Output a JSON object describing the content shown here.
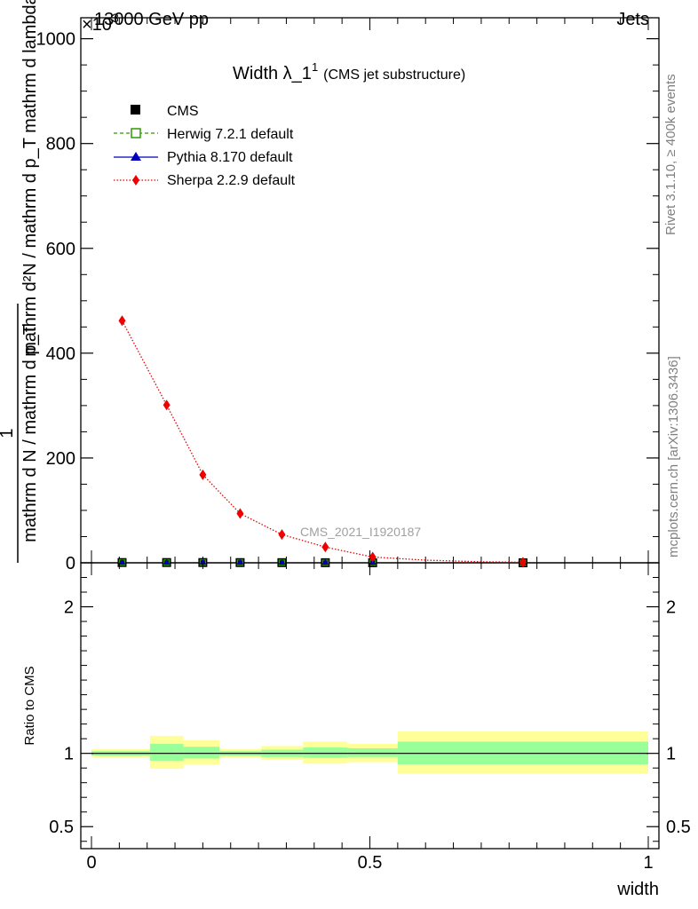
{
  "header": {
    "energy_label": "13000 GeV pp",
    "process_label": "Jets",
    "exponent_label": "×10",
    "exponent_sup": "3"
  },
  "side_labels": {
    "rivet": "Rivet 3.1.10, ≥ 400k events",
    "mcplots": "mcplots.cern.ch [arXiv:1306.3436]"
  },
  "chart_data": [
    {
      "type": "line",
      "title": "Width λ_1",
      "title_sup": "1",
      "title_suffix": "(CMS jet substructure)",
      "ylabel_numerator": "1",
      "ylabel_denominator": "mathrm d N / mathrm d p_T",
      "ylabel_main": "mathrm d²N / mathrm d p_T mathrm d lambda",
      "watermark": "CMS_2021_I1920187",
      "ylim": [
        0,
        1040
      ],
      "yticks": [
        0,
        200,
        400,
        600,
        800,
        1000
      ],
      "ytick_labels": [
        "0",
        "200",
        "400",
        "600",
        "800",
        "1000"
      ],
      "xlim": [
        0,
        1
      ],
      "legend_position": "top-left",
      "series": [
        {
          "name": "CMS",
          "color": "#000000",
          "marker": "square",
          "x": [
            0.055,
            0.135,
            0.2,
            0.267,
            0.342,
            0.42,
            0.505,
            0.775
          ],
          "values": [
            0.5,
            0.5,
            0.5,
            0.4,
            0.3,
            0.2,
            0.1,
            0.05
          ]
        },
        {
          "name": "Herwig 7.2.1 default",
          "color": "#339900",
          "marker": "open-square",
          "x": [
            0.055,
            0.135,
            0.2,
            0.267,
            0.342,
            0.42,
            0.505,
            0.775
          ],
          "values": [
            0.5,
            0.5,
            0.5,
            0.4,
            0.3,
            0.2,
            0.1,
            0.05
          ]
        },
        {
          "name": "Pythia 8.170 default",
          "color": "#0000bb",
          "marker": "triangle",
          "x": [
            0.055,
            0.135,
            0.2,
            0.267,
            0.342,
            0.42,
            0.505,
            0.775
          ],
          "values": [
            0.5,
            0.5,
            0.5,
            0.4,
            0.3,
            0.2,
            0.1,
            0.05
          ]
        },
        {
          "name": "Sherpa 2.2.9 default",
          "color": "#ee0000",
          "marker": "diamond",
          "x": [
            0.055,
            0.135,
            0.2,
            0.267,
            0.342,
            0.42,
            0.505,
            0.6,
            0.7,
            0.775
          ],
          "values": [
            462,
            301,
            168,
            94,
            54,
            30,
            11,
            5,
            2,
            1
          ]
        }
      ]
    },
    {
      "type": "area",
      "ylabel": "Ratio to CMS",
      "xlabel": "width",
      "ylim": [
        0.35,
        2.3
      ],
      "yticks": [
        0.5,
        1,
        2
      ],
      "ytick_labels": [
        "0.5",
        "1",
        "2"
      ],
      "xlim": [
        0,
        1
      ],
      "xticks": [
        0,
        0.5,
        1
      ],
      "xtick_labels": [
        "0",
        "0.5",
        "1"
      ],
      "reference_line": 1,
      "bins": [
        {
          "lo": 0.0,
          "hi": 0.105,
          "stat": [
            0.985,
            1.015
          ],
          "total": [
            0.97,
            1.03
          ]
        },
        {
          "lo": 0.105,
          "hi": 0.165,
          "stat": [
            0.95,
            1.065
          ],
          "total": [
            0.895,
            1.12
          ]
        },
        {
          "lo": 0.165,
          "hi": 0.23,
          "stat": [
            0.965,
            1.045
          ],
          "total": [
            0.925,
            1.09
          ]
        },
        {
          "lo": 0.23,
          "hi": 0.305,
          "stat": [
            0.985,
            1.015
          ],
          "total": [
            0.97,
            1.03
          ]
        },
        {
          "lo": 0.305,
          "hi": 0.38,
          "stat": [
            0.975,
            1.025
          ],
          "total": [
            0.955,
            1.05
          ]
        },
        {
          "lo": 0.38,
          "hi": 0.46,
          "stat": [
            0.97,
            1.04
          ],
          "total": [
            0.93,
            1.08
          ]
        },
        {
          "lo": 0.46,
          "hi": 0.55,
          "stat": [
            0.975,
            1.035
          ],
          "total": [
            0.94,
            1.065
          ]
        },
        {
          "lo": 0.55,
          "hi": 1.0,
          "stat": [
            0.925,
            1.08
          ],
          "total": [
            0.86,
            1.15
          ]
        }
      ]
    }
  ]
}
